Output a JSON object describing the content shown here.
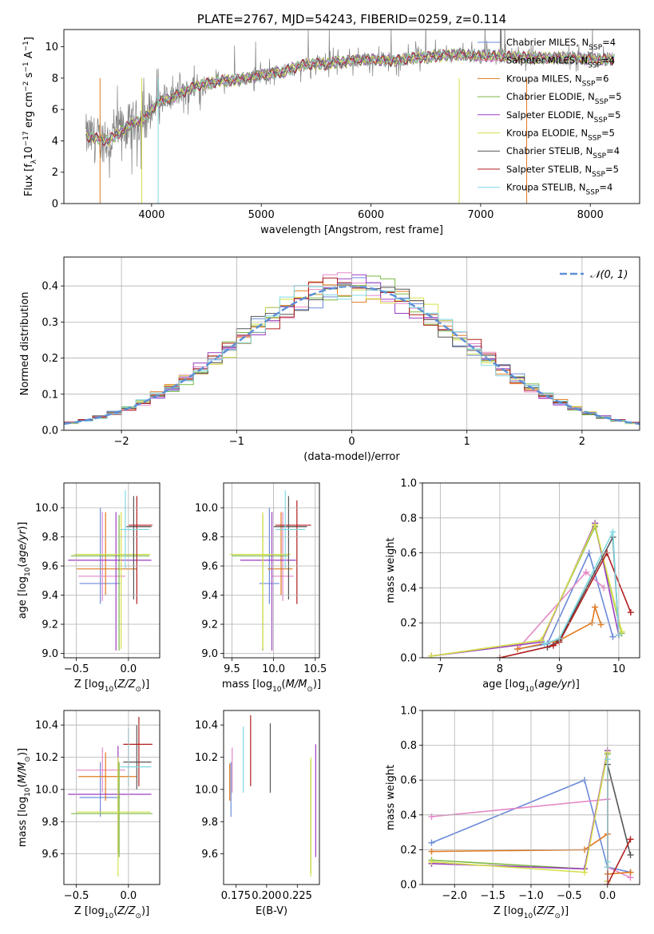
{
  "colors": {
    "Chabrier MILES": "#6a8ad9",
    "Salpeter MILES": "#e487c6",
    "Kroupa MILES": "#e07a20",
    "Chabrier ELODIE": "#7ab840",
    "Salpeter ELODIE": "#9a3ec0",
    "Kroupa ELODIE": "#d6e04a",
    "Chabrier STELIB": "#555555",
    "Salpeter STELIB": "#b01c1c",
    "Kroupa STELIB": "#80d8e4",
    "data": "#808080",
    "gaussian": "#5b8fd6"
  },
  "chart_data": [
    {
      "id": "spectrum",
      "type": "line",
      "title": "PLATE=2767, MJD=54243, FIBERID=0259, z=0.114",
      "xlabel": "wavelength [Angstrom, rest frame]",
      "ylabel": "Flux [f",
      "ylabel_full": "Flux [fλ10^-17 erg cm^-2 s^-1 A^-1]",
      "xlim": [
        3200,
        8450
      ],
      "ylim": [
        0,
        11.1
      ],
      "xticks": [
        4000,
        5000,
        6000,
        7000,
        8000
      ],
      "yticks": [
        0,
        2,
        4,
        6,
        8,
        10
      ],
      "legend_position": "right",
      "legend": [
        {
          "name": "Chabrier MILES",
          "nssp": "4"
        },
        {
          "name": "Salpeter MILES",
          "nssp": "4"
        },
        {
          "name": "Kroupa MILES",
          "nssp": "6"
        },
        {
          "name": "Chabrier ELODIE",
          "nssp": "5"
        },
        {
          "name": "Salpeter ELODIE",
          "nssp": "5"
        },
        {
          "name": "Kroupa ELODIE",
          "nssp": "5"
        },
        {
          "name": "Chabrier STELIB",
          "nssp": "4"
        },
        {
          "name": "Salpeter STELIB",
          "nssp": "5"
        },
        {
          "name": "Kroupa STELIB",
          "nssp": "4"
        }
      ],
      "continuum": [
        [
          3400,
          4.3
        ],
        [
          3600,
          4.0
        ],
        [
          3800,
          5.0
        ],
        [
          3950,
          5.5
        ],
        [
          4050,
          6.4
        ],
        [
          4200,
          6.8
        ],
        [
          4400,
          7.5
        ],
        [
          4600,
          7.8
        ],
        [
          4800,
          7.9
        ],
        [
          5000,
          8.2
        ],
        [
          5200,
          8.4
        ],
        [
          5400,
          8.9
        ],
        [
          5600,
          8.9
        ],
        [
          5800,
          9.1
        ],
        [
          6000,
          9.2
        ],
        [
          6200,
          9.1
        ],
        [
          6400,
          9.3
        ],
        [
          6600,
          9.4
        ],
        [
          6800,
          9.5
        ],
        [
          7000,
          9.4
        ],
        [
          7200,
          9.4
        ],
        [
          7500,
          9.3
        ],
        [
          7800,
          9.3
        ],
        [
          8000,
          9.2
        ],
        [
          8200,
          9.2
        ]
      ]
    },
    {
      "id": "residuals",
      "type": "line",
      "xlabel": "(data-model)/error",
      "ylabel": "Normed distribution",
      "xlim": [
        -2.5,
        2.5
      ],
      "ylim": [
        0,
        0.48
      ],
      "xticks": [
        -2,
        -1,
        0,
        1,
        2
      ],
      "yticks": [
        0.0,
        0.1,
        0.2,
        0.3,
        0.4
      ],
      "grid": true,
      "legend_position": "top-right",
      "legend_label": "𝒩(0, 1)"
    },
    {
      "id": "age-vs-Z",
      "type": "scatter",
      "xlabel": "Z [log",
      "ylabel": "age  [log",
      "xlim": [
        -0.62,
        0.3
      ],
      "ylim": [
        8.97,
        10.17
      ],
      "xticks": [
        -0.5,
        0.0
      ],
      "yticks": [
        9.0,
        9.2,
        9.4,
        9.6,
        9.8,
        10.0
      ],
      "grid": true,
      "points": [
        {
          "m": "Chabrier MILES",
          "x": -0.27,
          "xe": [
            -0.47,
            -0.08
          ],
          "y": 9.48,
          "ye": [
            9.34,
            10.0
          ]
        },
        {
          "m": "Salpeter MILES",
          "x": -0.25,
          "xe": [
            -0.48,
            -0.03
          ],
          "y": 9.53,
          "ye": [
            9.36,
            9.97
          ]
        },
        {
          "m": "Kroupa MILES",
          "x": -0.22,
          "xe": [
            -0.5,
            0.08
          ],
          "y": 9.58,
          "ye": [
            9.4,
            9.97
          ]
        },
        {
          "m": "Chabrier ELODIE",
          "x": -0.09,
          "xe": [
            -0.55,
            0.2
          ],
          "y": 9.67,
          "ye": [
            9.02,
            9.95
          ]
        },
        {
          "m": "Salpeter ELODIE",
          "x": -0.12,
          "xe": [
            -0.58,
            0.22
          ],
          "y": 9.64,
          "ye": [
            9.02,
            9.97
          ]
        },
        {
          "m": "Kroupa ELODIE",
          "x": -0.07,
          "xe": [
            -0.52,
            0.21
          ],
          "y": 9.68,
          "ye": [
            9.03,
            9.97
          ]
        },
        {
          "m": "Chabrier STELIB",
          "x": 0.05,
          "xe": [
            -0.02,
            0.22
          ],
          "y": 9.87,
          "ye": [
            9.37,
            10.08
          ]
        },
        {
          "m": "Salpeter STELIB",
          "x": 0.08,
          "xe": [
            0.0,
            0.23
          ],
          "y": 9.88,
          "ye": [
            9.34,
            10.08
          ]
        },
        {
          "m": "Kroupa STELIB",
          "x": -0.03,
          "xe": [
            -0.08,
            0.2
          ],
          "y": 9.85,
          "ye": [
            9.58,
            10.12
          ]
        }
      ]
    },
    {
      "id": "age-vs-mass",
      "type": "scatter",
      "xlabel": "mass [log",
      "xlim": [
        9.4,
        10.55
      ],
      "ylim": [
        8.97,
        10.17
      ],
      "xticks": [
        9.5,
        10.0,
        10.5
      ],
      "yticks": [
        9.0,
        9.2,
        9.4,
        9.6,
        9.8,
        10.0
      ],
      "grid": true,
      "points": [
        {
          "m": "Chabrier MILES",
          "x": 9.95,
          "xe": [
            9.83,
            10.07
          ],
          "y": 9.48,
          "ye": [
            9.34,
            10.0
          ]
        },
        {
          "m": "Salpeter MILES",
          "x": 10.11,
          "xe": [
            9.98,
            10.24
          ],
          "y": 9.53,
          "ye": [
            9.36,
            9.97
          ]
        },
        {
          "m": "Kroupa MILES",
          "x": 10.09,
          "xe": [
            9.93,
            10.23
          ],
          "y": 9.58,
          "ye": [
            9.4,
            9.97
          ]
        },
        {
          "m": "Chabrier ELODIE",
          "x": 9.87,
          "xe": [
            9.5,
            10.17
          ],
          "y": 9.67,
          "ye": [
            9.02,
            9.95
          ]
        },
        {
          "m": "Salpeter ELODIE",
          "x": 9.98,
          "xe": [
            9.6,
            10.27
          ],
          "y": 9.64,
          "ye": [
            9.02,
            9.97
          ]
        },
        {
          "m": "Kroupa ELODIE",
          "x": 9.87,
          "xe": [
            9.47,
            10.2
          ],
          "y": 9.68,
          "ye": [
            9.03,
            9.97
          ]
        },
        {
          "m": "Chabrier STELIB",
          "x": 10.18,
          "xe": [
            10.0,
            10.4
          ],
          "y": 9.87,
          "ye": [
            9.37,
            10.08
          ]
        },
        {
          "m": "Salpeter STELIB",
          "x": 10.28,
          "xe": [
            10.02,
            10.45
          ],
          "y": 9.88,
          "ye": [
            9.34,
            10.05
          ]
        },
        {
          "m": "Kroupa STELIB",
          "x": 10.14,
          "xe": [
            10.02,
            10.38
          ],
          "y": 9.85,
          "ye": [
            9.58,
            10.12
          ]
        }
      ]
    },
    {
      "id": "mass-weight-vs-age",
      "type": "line",
      "xlabel": "age  [log",
      "ylabel": "mass weight",
      "xlim": [
        6.7,
        10.35
      ],
      "ylim": [
        0,
        1.0
      ],
      "xticks": [
        7,
        8,
        9,
        10
      ],
      "yticks": [
        0.0,
        0.2,
        0.4,
        0.6,
        0.8,
        1.0
      ],
      "grid": true,
      "series": [
        {
          "m": "Chabrier MILES",
          "x": [
            8.3,
            8.8,
            9.5,
            9.9
          ],
          "y": [
            0.05,
            0.08,
            0.6,
            0.12
          ]
        },
        {
          "m": "Salpeter MILES",
          "x": [
            8.3,
            9.45,
            9.75
          ],
          "y": [
            0.05,
            0.49,
            0.4
          ]
        },
        {
          "m": "Kroupa MILES",
          "x": [
            8.3,
            9.0,
            9.55,
            9.6,
            9.7
          ],
          "y": [
            0.05,
            0.1,
            0.2,
            0.29,
            0.19
          ]
        },
        {
          "m": "Chabrier ELODIE",
          "x": [
            6.85,
            8.7,
            9.6,
            10.05
          ],
          "y": [
            0.01,
            0.1,
            0.75,
            0.14
          ]
        },
        {
          "m": "Salpeter ELODIE",
          "x": [
            6.85,
            8.7,
            9.6,
            10.0
          ],
          "y": [
            0.01,
            0.09,
            0.77,
            0.13
          ]
        },
        {
          "m": "Kroupa ELODIE",
          "x": [
            6.85,
            8.7,
            9.6,
            10.05
          ],
          "y": [
            0.01,
            0.1,
            0.76,
            0.15
          ]
        },
        {
          "m": "Chabrier STELIB",
          "x": [
            8.8,
            9.0,
            9.9,
            10.0
          ],
          "y": [
            0.06,
            0.1,
            0.69,
            0.13
          ]
        },
        {
          "m": "Salpeter STELIB",
          "x": [
            8.0,
            8.9,
            9.0,
            9.8,
            10.2
          ],
          "y": [
            0.0,
            0.07,
            0.09,
            0.6,
            0.26
          ]
        },
        {
          "m": "Kroupa STELIB",
          "x": [
            8.75,
            9.0,
            9.9,
            10.0
          ],
          "y": [
            0.08,
            0.11,
            0.72,
            0.13
          ]
        }
      ]
    },
    {
      "id": "mass-vs-Z",
      "type": "scatter",
      "xlabel": "Z [log",
      "ylabel": "mass [log",
      "xlim": [
        -0.62,
        0.3
      ],
      "ylim": [
        9.41,
        10.49
      ],
      "xticks": [
        -0.5,
        0.0
      ],
      "yticks": [
        9.6,
        9.8,
        10.0,
        10.2,
        10.4
      ],
      "grid": true,
      "points": [
        {
          "m": "Chabrier MILES",
          "x": -0.27,
          "xe": [
            -0.47,
            -0.08
          ],
          "y": 9.95,
          "ye": [
            9.83,
            10.17
          ]
        },
        {
          "m": "Salpeter MILES",
          "x": -0.25,
          "xe": [
            -0.5,
            -0.03
          ],
          "y": 10.12,
          "ye": [
            9.98,
            10.26
          ]
        },
        {
          "m": "Kroupa MILES",
          "x": -0.22,
          "xe": [
            -0.48,
            0.08
          ],
          "y": 10.08,
          "ye": [
            9.93,
            10.23
          ]
        },
        {
          "m": "Chabrier ELODIE",
          "x": -0.09,
          "xe": [
            -0.55,
            0.23
          ],
          "y": 9.85,
          "ye": [
            9.58,
            10.17
          ]
        },
        {
          "m": "Salpeter ELODIE",
          "x": -0.1,
          "xe": [
            -0.58,
            0.22
          ],
          "y": 9.97,
          "ye": [
            9.6,
            10.27
          ]
        },
        {
          "m": "Kroupa ELODIE",
          "x": -0.1,
          "xe": [
            -0.5,
            0.21
          ],
          "y": 9.86,
          "ye": [
            9.46,
            10.2
          ]
        },
        {
          "m": "Chabrier STELIB",
          "x": 0.08,
          "xe": [
            -0.05,
            0.22
          ],
          "y": 10.17,
          "ye": [
            10.0,
            10.4
          ]
        },
        {
          "m": "Salpeter STELIB",
          "x": 0.1,
          "xe": [
            -0.05,
            0.23
          ],
          "y": 10.28,
          "ye": [
            10.02,
            10.45
          ]
        },
        {
          "m": "Kroupa STELIB",
          "x": 0.0,
          "xe": [
            -0.08,
            0.22
          ],
          "y": 10.14,
          "ye": [
            10.02,
            10.38
          ]
        }
      ]
    },
    {
      "id": "mass-vs-ebv",
      "type": "scatter",
      "xlabel": "E(B-V)",
      "xlim": [
        0.165,
        0.243
      ],
      "ylim": [
        9.41,
        10.49
      ],
      "xticks": [
        0.175,
        0.2,
        0.225
      ],
      "xtick_labels": [
        "0.175",
        "0.200",
        "0.225"
      ],
      "yticks": [
        9.6,
        9.8,
        10.0,
        10.2,
        10.4
      ],
      "points": [
        {
          "m": "Chabrier MILES",
          "x": 0.171,
          "y": 9.95,
          "ye": [
            9.83,
            10.17
          ]
        },
        {
          "m": "Salpeter MILES",
          "x": 0.172,
          "y": 10.12,
          "ye": [
            9.98,
            10.26
          ]
        },
        {
          "m": "Kroupa MILES",
          "x": 0.17,
          "y": 10.05,
          "ye": [
            9.93,
            10.16
          ]
        },
        {
          "m": "Chabrier ELODIE",
          "x": 0.236,
          "y": 9.86,
          "ye": [
            9.48,
            10.18
          ]
        },
        {
          "m": "Salpeter ELODIE",
          "x": 0.24,
          "y": 9.97,
          "ye": [
            9.58,
            10.28
          ]
        },
        {
          "m": "Kroupa ELODIE",
          "x": 0.236,
          "y": 9.86,
          "ye": [
            9.46,
            10.2
          ]
        },
        {
          "m": "Chabrier STELIB",
          "x": 0.203,
          "y": 10.17,
          "ye": [
            9.98,
            10.41
          ]
        },
        {
          "m": "Salpeter STELIB",
          "x": 0.187,
          "y": 10.28,
          "ye": [
            10.02,
            10.46
          ]
        },
        {
          "m": "Kroupa STELIB",
          "x": 0.181,
          "y": 10.14,
          "ye": [
            9.98,
            10.39
          ]
        }
      ]
    },
    {
      "id": "mass-weight-vs-Z",
      "type": "line",
      "xlabel": "Z [log",
      "ylabel": "mass weight",
      "xlim": [
        -2.42,
        0.42
      ],
      "ylim": [
        0,
        1.0
      ],
      "xticks": [
        -2.0,
        -1.5,
        -1.0,
        -0.5,
        0.0
      ],
      "yticks": [
        0.0,
        0.2,
        0.4,
        0.6,
        0.8,
        1.0
      ],
      "grid": true,
      "series": [
        {
          "m": "Chabrier MILES",
          "x": [
            -2.3,
            -0.3,
            0.0,
            0.0,
            0.3
          ],
          "y": [
            0.24,
            0.6,
            0.1,
            0.1,
            0.07
          ]
        },
        {
          "m": "Salpeter MILES",
          "x": [
            -2.3,
            0.0,
            0.0,
            0.3
          ],
          "y": [
            0.39,
            0.49,
            0.1,
            0.04
          ]
        },
        {
          "m": "Kroupa MILES",
          "x": [
            -2.3,
            -0.3,
            0.0,
            0.0,
            0.3
          ],
          "y": [
            0.19,
            0.2,
            0.29,
            0.06,
            0.07
          ]
        },
        {
          "m": "Chabrier ELODIE",
          "x": [
            -2.3,
            -0.3,
            0.0,
            0.0
          ],
          "y": [
            0.14,
            0.09,
            0.75,
            0.02
          ]
        },
        {
          "m": "Salpeter ELODIE",
          "x": [
            -2.3,
            -0.3,
            0.0,
            0.0
          ],
          "y": [
            0.12,
            0.09,
            0.77,
            0.02
          ]
        },
        {
          "m": "Kroupa ELODIE",
          "x": [
            -2.3,
            -0.3,
            0.0,
            0.0
          ],
          "y": [
            0.13,
            0.07,
            0.76,
            0.02
          ]
        },
        {
          "m": "Chabrier STELIB",
          "x": [
            0.0,
            0.3
          ],
          "y": [
            0.69,
            0.17
          ]
        },
        {
          "m": "Salpeter STELIB",
          "x": [
            0.0,
            0.0,
            0.3
          ],
          "y": [
            0.6,
            0.0,
            0.26
          ]
        },
        {
          "m": "Kroupa STELIB",
          "x": [
            0.0,
            0.0,
            0.0
          ],
          "y": [
            0.72,
            0.13,
            0.1
          ]
        }
      ]
    }
  ]
}
